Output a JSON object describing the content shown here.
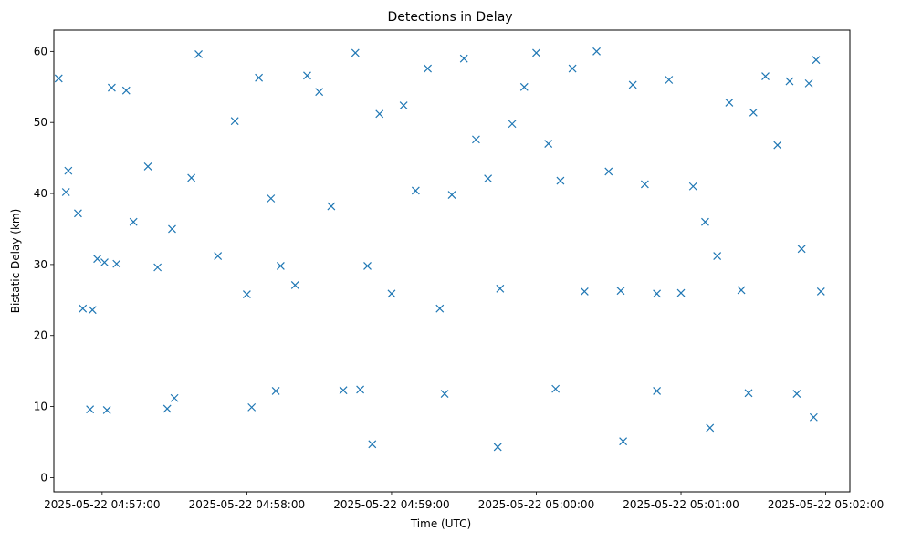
{
  "chart_data": {
    "type": "scatter",
    "title": "Detections in Delay",
    "xlabel": "Time (UTC)",
    "ylabel": "Bistatic Delay (km)",
    "x_format": "YYYY-MM-DD HH:MM:SS (UTC)",
    "xlim": [
      "2025-05-22 04:56:40",
      "2025-05-22 05:02:10"
    ],
    "ylim": [
      -2.0,
      63.0
    ],
    "x_ticks": [
      "2025-05-22 04:57:00",
      "2025-05-22 04:58:00",
      "2025-05-22 04:59:00",
      "2025-05-22 05:00:00",
      "2025-05-22 05:01:00",
      "2025-05-22 05:02:00"
    ],
    "y_ticks": [
      0,
      10,
      20,
      30,
      40,
      50,
      60
    ],
    "marker": "x",
    "marker_color": "#1f77b4",
    "grid": false,
    "legend": "none",
    "series": [
      {
        "x": [
          "2025-05-22 04:56:42",
          "2025-05-22 04:56:45",
          "2025-05-22 04:56:46",
          "2025-05-22 04:56:50",
          "2025-05-22 04:56:52",
          "2025-05-22 04:56:56",
          "2025-05-22 04:56:58",
          "2025-05-22 04:57:01",
          "2025-05-22 04:57:04",
          "2025-05-22 04:57:06",
          "2025-05-22 04:57:10",
          "2025-05-22 04:57:13",
          "2025-05-22 04:57:19",
          "2025-05-22 04:57:23",
          "2025-05-22 04:57:29",
          "2025-05-22 04:57:37",
          "2025-05-22 04:57:40",
          "2025-05-22 04:57:48",
          "2025-05-22 04:57:55",
          "2025-05-22 04:58:00",
          "2025-05-22 04:58:05",
          "2025-05-22 04:58:10",
          "2025-05-22 04:58:14",
          "2025-05-22 04:58:20",
          "2025-05-22 04:58:25",
          "2025-05-22 04:58:30",
          "2025-05-22 04:58:35",
          "2025-05-22 04:58:40",
          "2025-05-22 04:58:45",
          "2025-05-22 04:58:50",
          "2025-05-22 04:58:55",
          "2025-05-22 04:59:00",
          "2025-05-22 04:59:05",
          "2025-05-22 04:59:10",
          "2025-05-22 04:59:15",
          "2025-05-22 04:59:20",
          "2025-05-22 04:59:25",
          "2025-05-22 04:59:30",
          "2025-05-22 04:59:35",
          "2025-05-22 04:59:40",
          "2025-05-22 04:59:45",
          "2025-05-22 04:59:50",
          "2025-05-22 04:59:55",
          "2025-05-22 05:00:00",
          "2025-05-22 05:00:05",
          "2025-05-22 05:00:10",
          "2025-05-22 05:00:15",
          "2025-05-22 05:00:20",
          "2025-05-22 05:00:25",
          "2025-05-22 05:00:30",
          "2025-05-22 05:00:35",
          "2025-05-22 05:00:40",
          "2025-05-22 05:00:45",
          "2025-05-22 05:00:50",
          "2025-05-22 05:00:55",
          "2025-05-22 05:01:00",
          "2025-05-22 05:01:05",
          "2025-05-22 05:01:10",
          "2025-05-22 05:01:15",
          "2025-05-22 05:01:20",
          "2025-05-22 05:01:25",
          "2025-05-22 05:01:30",
          "2025-05-22 05:01:35",
          "2025-05-22 05:01:40",
          "2025-05-22 05:01:45",
          "2025-05-22 05:01:50",
          "2025-05-22 05:01:53",
          "2025-05-22 05:01:56",
          "2025-05-22 05:01:58",
          "2025-05-22 04:57:02",
          "2025-05-22 04:57:30",
          "2025-05-22 04:58:12",
          "2025-05-22 04:58:47",
          "2025-05-22 04:59:22",
          "2025-05-22 05:00:08",
          "2025-05-22 05:00:50",
          "2025-05-22 05:01:28",
          "2025-05-22 05:01:48",
          "2025-05-22 04:56:55",
          "2025-05-22 04:57:27",
          "2025-05-22 04:58:02",
          "2025-05-22 04:58:52",
          "2025-05-22 04:59:44",
          "2025-05-22 05:00:36",
          "2025-05-22 05:01:12",
          "2025-05-22 05:01:55"
        ],
        "y": [
          56.2,
          40.2,
          43.2,
          37.2,
          23.8,
          23.6,
          30.8,
          30.3,
          54.9,
          30.1,
          54.5,
          36.0,
          43.8,
          29.6,
          35.0,
          42.2,
          59.6,
          31.2,
          50.2,
          25.8,
          56.3,
          39.3,
          29.8,
          27.1,
          56.6,
          54.3,
          38.2,
          12.3,
          59.8,
          29.8,
          51.2,
          25.9,
          52.4,
          40.4,
          57.6,
          23.8,
          39.8,
          59.0,
          47.6,
          42.1,
          26.6,
          49.8,
          55.0,
          59.8,
          47.0,
          41.8,
          57.6,
          26.2,
          60.0,
          43.1,
          26.3,
          55.3,
          41.3,
          25.9,
          56.0,
          26.0,
          41.0,
          36.0,
          31.2,
          52.8,
          26.4,
          51.4,
          56.5,
          46.8,
          55.8,
          32.2,
          55.5,
          58.8,
          26.2,
          9.5,
          11.2,
          12.2,
          12.4,
          11.8,
          12.5,
          12.2,
          11.9,
          11.8,
          9.6,
          9.7,
          9.9,
          4.7,
          4.3,
          5.1,
          7.0,
          8.5
        ]
      }
    ]
  }
}
